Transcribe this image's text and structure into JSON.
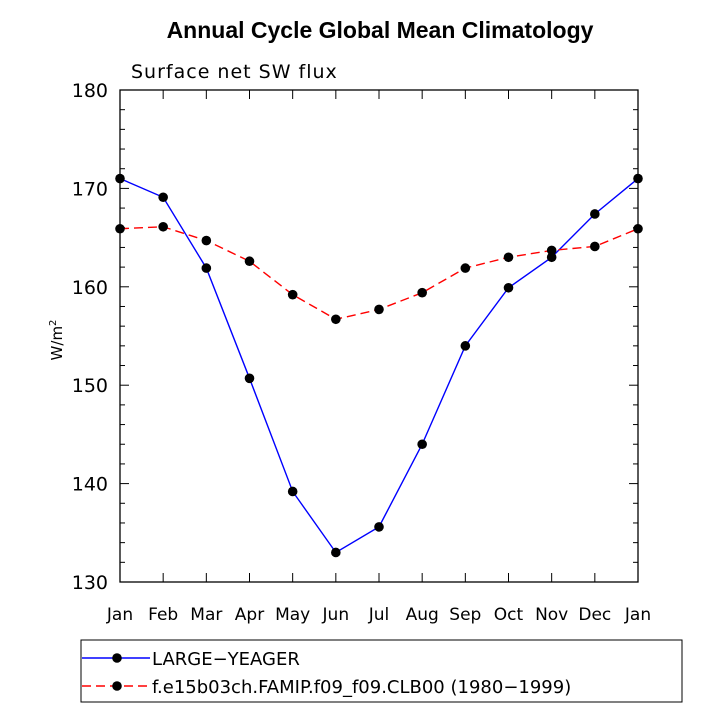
{
  "chart_data": {
    "type": "line",
    "title": "Annual Cycle Global Mean Climatology",
    "subtitle": "Surface net SW flux",
    "xlabel": "",
    "ylabel": "W/m",
    "ylabel_superscript": "2",
    "ylim": [
      130,
      180
    ],
    "yticks": [
      130,
      140,
      150,
      160,
      170,
      180
    ],
    "categories": [
      "Jan",
      "Feb",
      "Mar",
      "Apr",
      "May",
      "Jun",
      "Jul",
      "Aug",
      "Sep",
      "Oct",
      "Nov",
      "Dec",
      "Jan"
    ],
    "legend_position": "bottom",
    "series": [
      {
        "name": "LARGE−YEAGER",
        "color": "#0000ff",
        "dash": "solid",
        "marker": "filled-circle",
        "values": [
          171.0,
          169.1,
          161.9,
          150.7,
          139.2,
          133.0,
          135.6,
          144.0,
          154.0,
          159.9,
          163.0,
          167.4,
          171.0
        ]
      },
      {
        "name": "f.e15b03ch.FAMIP.f09_f09.CLB00 (1980−1999)",
        "color": "#ff0000",
        "dash": "dashed",
        "marker": "filled-circle",
        "values": [
          165.9,
          166.1,
          164.7,
          162.6,
          159.2,
          156.7,
          157.7,
          159.4,
          161.9,
          163.0,
          163.7,
          164.1,
          165.9
        ]
      }
    ]
  }
}
